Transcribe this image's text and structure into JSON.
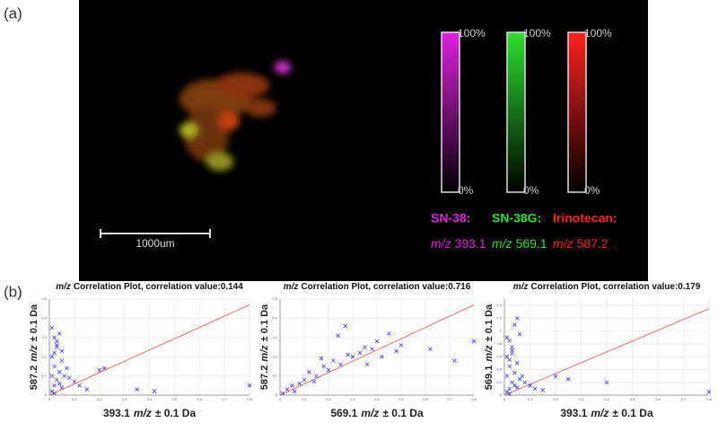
{
  "labels": {
    "a": "(a)",
    "b": "(b)"
  },
  "panel_a": {
    "scale_bar": "1000um",
    "channels": [
      {
        "name": "SN-38:",
        "mz": "m/z",
        "mass": "393.1",
        "color": "#e020e0",
        "max": "100%",
        "min": "0%"
      },
      {
        "name": "SN-38G:",
        "mz": "m/z",
        "mass": "569.1",
        "color": "#2ee02e",
        "max": "100%",
        "min": "0%"
      },
      {
        "name": "Irinotecan:",
        "mz": "m/z",
        "mass": "587.2",
        "color": "#ff2020",
        "max": "100%",
        "min": "0%"
      }
    ]
  },
  "chart_data": [
    {
      "type": "scatter",
      "title_mz": "m/z",
      "title": "Correlation Plot, correlation value:0.144",
      "xlabel_mass": "393.1",
      "xlabel_mz": "m/z",
      "xlabel_unit": "± 0.1 Da",
      "ylabel_mass": "587.2",
      "ylabel_mz": "m/z",
      "ylabel_unit": "± 0.1 Da",
      "xlim": [
        0,
        0.8
      ],
      "ylim": [
        0,
        0.5
      ],
      "xticks": [
        0,
        0.1,
        0.2,
        0.3,
        0.4,
        0.5,
        0.6,
        0.7,
        0.8
      ],
      "yticks": [
        0,
        0.1,
        0.2,
        0.3,
        0.4,
        0.5
      ],
      "color": "#3a3ae0",
      "line_color": "#e07070",
      "fit_line": {
        "x": [
          0,
          0.8
        ],
        "y": [
          0,
          0.47
        ]
      },
      "x": [
        0.01,
        0.02,
        0.01,
        0.03,
        0.02,
        0.04,
        0.01,
        0.05,
        0.03,
        0.02,
        0.06,
        0.04,
        0.01,
        0.02,
        0.03,
        0.07,
        0.05,
        0.02,
        0.08,
        0.04,
        0.1,
        0.12,
        0.2,
        0.22,
        0.15,
        0.35,
        0.42,
        0.8,
        0.03,
        0.05
      ],
      "values": [
        0.02,
        0.05,
        0.1,
        0.08,
        0.15,
        0.12,
        0.2,
        0.18,
        0.25,
        0.3,
        0.1,
        0.06,
        0.35,
        0.22,
        0.28,
        0.14,
        0.04,
        0.01,
        0.09,
        0.32,
        0.07,
        0.05,
        0.13,
        0.14,
        0.03,
        0.03,
        0.02,
        0.05,
        0.26,
        0.23
      ]
    },
    {
      "type": "scatter",
      "title_mz": "m/z",
      "title": "Correlation Plot, correlation value:0.716",
      "xlabel_mass": "569.1",
      "xlabel_mz": "m/z",
      "xlabel_unit": "± 0.1 Da",
      "ylabel_mass": "587.2",
      "ylabel_mz": "m/z",
      "ylabel_unit": "± 0.1 Da",
      "xlim": [
        0,
        0.8
      ],
      "ylim": [
        0,
        0.5
      ],
      "xticks": [
        0,
        0.1,
        0.2,
        0.3,
        0.4,
        0.5,
        0.6,
        0.7,
        0.8
      ],
      "yticks": [
        0,
        0.1,
        0.2,
        0.3,
        0.4,
        0.5
      ],
      "color": "#3a3ae0",
      "line_color": "#e07070",
      "fit_line": {
        "x": [
          0,
          0.8
        ],
        "y": [
          0,
          0.47
        ]
      },
      "x": [
        0.01,
        0.03,
        0.05,
        0.08,
        0.1,
        0.12,
        0.15,
        0.18,
        0.2,
        0.22,
        0.25,
        0.28,
        0.3,
        0.33,
        0.35,
        0.38,
        0.4,
        0.42,
        0.45,
        0.48,
        0.5,
        0.62,
        0.72,
        0.8,
        0.06,
        0.14,
        0.24,
        0.17,
        0.27,
        0.36
      ],
      "values": [
        0.01,
        0.03,
        0.05,
        0.06,
        0.08,
        0.12,
        0.1,
        0.15,
        0.13,
        0.18,
        0.16,
        0.21,
        0.2,
        0.22,
        0.25,
        0.24,
        0.28,
        0.2,
        0.32,
        0.23,
        0.26,
        0.24,
        0.18,
        0.28,
        0.02,
        0.07,
        0.31,
        0.19,
        0.36,
        0.16
      ]
    },
    {
      "type": "scatter",
      "title_mz": "m/z",
      "title": "Correlation Plot, correlation value:0.179",
      "xlabel_mass": "393.1",
      "xlabel_mz": "m/z",
      "xlabel_unit": "± 0.1 Da",
      "ylabel_mass": "569.1",
      "ylabel_mz": "m/z",
      "ylabel_unit": "± 0.1 Da",
      "xlim": [
        0,
        0.8
      ],
      "ylim": [
        0,
        1.5
      ],
      "xticks": [
        0,
        0.1,
        0.2,
        0.3,
        0.4,
        0.5,
        0.6,
        0.7,
        0.8
      ],
      "yticks": [
        0,
        0.2,
        0.4,
        0.6,
        0.8,
        1,
        1.2,
        1.4
      ],
      "color": "#3a3ae0",
      "line_color": "#e07070",
      "fit_line": {
        "x": [
          0,
          0.8
        ],
        "y": [
          0,
          1.35
        ]
      },
      "x": [
        0.01,
        0.02,
        0.01,
        0.03,
        0.02,
        0.04,
        0.01,
        0.05,
        0.03,
        0.02,
        0.06,
        0.04,
        0.01,
        0.02,
        0.03,
        0.07,
        0.05,
        0.02,
        0.08,
        0.04,
        0.1,
        0.12,
        0.2,
        0.25,
        0.15,
        0.4,
        0.8,
        0.03,
        0.05,
        0.06
      ],
      "values": [
        0.05,
        0.1,
        0.3,
        0.2,
        0.45,
        0.35,
        0.6,
        0.5,
        0.7,
        0.85,
        0.25,
        0.15,
        0.9,
        0.55,
        0.75,
        0.3,
        0.12,
        0.02,
        0.2,
        1.1,
        0.15,
        0.1,
        0.3,
        0.25,
        0.08,
        0.2,
        0.05,
        0.65,
        1.2,
        0.95
      ]
    }
  ]
}
